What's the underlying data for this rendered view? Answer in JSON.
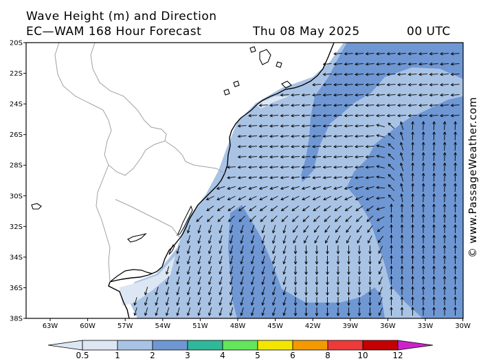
{
  "header": {
    "title_line1": "Wave Height (m) and Direction",
    "title_line2": "EC—WAM 168 Hour Forecast",
    "date": "Thu 08 May 2025",
    "time": "00 UTC"
  },
  "credit": "© www.PassageWeather.com",
  "map": {
    "lat_labels": [
      "20S",
      "22S",
      "24S",
      "26S",
      "28S",
      "30S",
      "32S",
      "34S",
      "36S",
      "38S"
    ],
    "lon_labels": [
      "63W",
      "60W",
      "57W",
      "54W",
      "51W",
      "48W",
      "45W",
      "42W",
      "39W",
      "36W",
      "33W",
      "30W"
    ],
    "colors": {
      "land": "#ffffff",
      "coastline": "#000000",
      "borders": "#a0a0a0",
      "wave_0_5_1": "#dde6f3",
      "wave_1_2": "#a9c3e5",
      "wave_2_3": "#6f97d4",
      "arrow": "#000000"
    }
  },
  "legend": {
    "ticks": [
      "0.5",
      "1",
      "2",
      "3",
      "4",
      "5",
      "6",
      "8",
      "10",
      "12"
    ],
    "colors": [
      "#dde6f3",
      "#a9c3e5",
      "#6f97d4",
      "#2fb89a",
      "#62e65a",
      "#f2e600",
      "#f29a00",
      "#ef3a3a",
      "#c40000",
      "#cc22cc"
    ]
  }
}
